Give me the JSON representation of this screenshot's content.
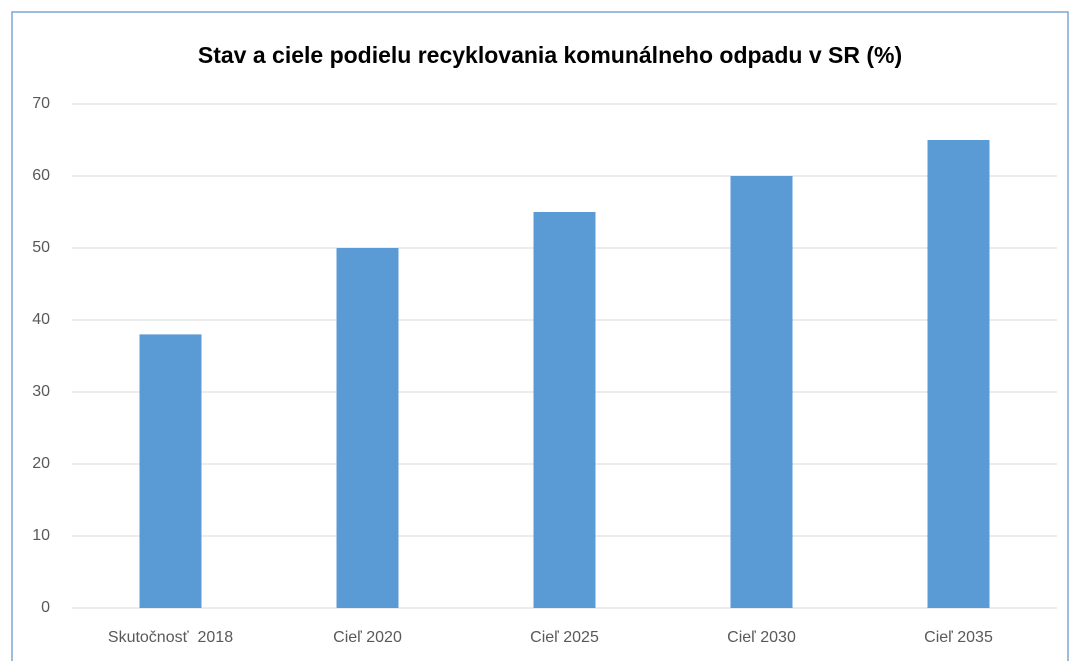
{
  "chart_data": {
    "type": "bar",
    "title": "Stav a ciele podielu recyklovania komunálneho odpadu v SR (%)",
    "categories": [
      "Skutočnosť  2018",
      "Cieľ 2020",
      "Cieľ 2025",
      "Cieľ 2030",
      "Cieľ 2035"
    ],
    "values": [
      38,
      50,
      55,
      60,
      65
    ],
    "color": "#5b9bd5",
    "ylim": [
      0,
      70
    ],
    "yticks": [
      0,
      10,
      20,
      30,
      40,
      50,
      60,
      70
    ],
    "grid": true
  }
}
